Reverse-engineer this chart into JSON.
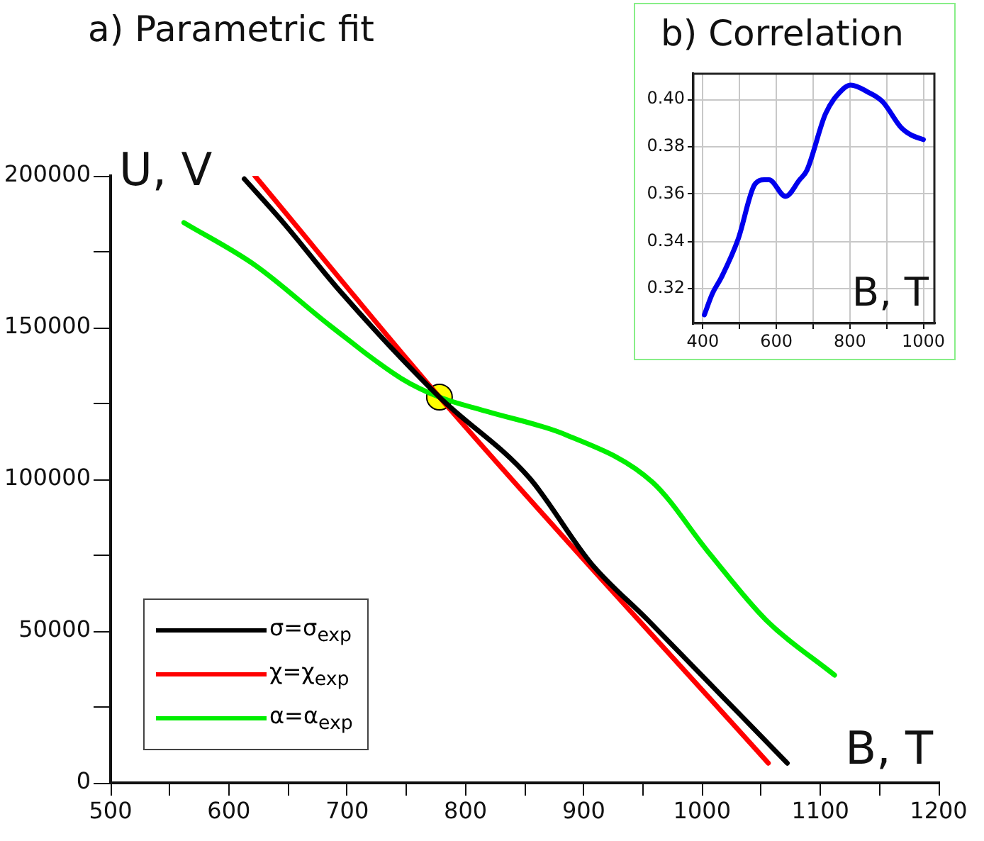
{
  "chart_data": [
    {
      "type": "line",
      "title": "a) Parametric fit",
      "xlabel": "B, T",
      "ylabel": "U, V",
      "xlim": [
        500,
        1200
      ],
      "ylim": [
        0,
        200000
      ],
      "xticks": [
        500,
        {
          "value": 550,
          "label": null
        },
        600,
        {
          "value": 650,
          "label": null
        },
        700,
        {
          "value": 750,
          "label": null
        },
        800,
        {
          "value": 850,
          "label": null
        },
        900,
        {
          "value": 950,
          "label": null
        },
        1000,
        {
          "value": 1050,
          "label": null
        },
        1100,
        {
          "value": 1150,
          "label": null
        },
        1200
      ],
      "yticks": [
        0,
        {
          "value": 25000,
          "label": null
        },
        50000,
        {
          "value": 75000,
          "label": null
        },
        100000,
        {
          "value": 125000,
          "label": null
        },
        150000,
        {
          "value": 175000,
          "label": null
        },
        200000
      ],
      "grid": false,
      "legend": "bottom left",
      "marker": "none",
      "series": [
        {
          "name": "σ=σ$_{exp}$",
          "color": "#000000",
          "x": [
            613,
            646,
            694,
            778,
            854,
            906,
            954,
            1072
          ],
          "values": [
            199000,
            184600,
            162000,
            127100,
            100500,
            72400,
            53700,
            6500
          ]
        },
        {
          "name": "χ=χ$_{exp}$",
          "color": "#ff0000",
          "x": [
            622,
            778,
            1056
          ],
          "values": [
            200000,
            127100,
            6500
          ]
        },
        {
          "name": "α=α$_{exp}$",
          "color": "#00ee00",
          "x": [
            562,
            622,
            686,
            746,
            778,
            818,
            886,
            958,
            1006,
            1054,
            1112
          ],
          "values": [
            184600,
            170600,
            150500,
            133200,
            127100,
            122400,
            114500,
            99100,
            75700,
            53700,
            35500
          ]
        },
        {
          "type": "scatter",
          "marker": "circle",
          "color": "#ffff00",
          "x": [
            778
          ],
          "values": [
            127100
          ]
        }
      ]
    },
    {
      "type": "line",
      "title": "b) Correlation",
      "xlabel": "B, T",
      "xlim": [
        374,
        1030
      ],
      "ylim": [
        0.3054,
        0.4108
      ],
      "xticks": [
        400,
        {
          "value": 500,
          "label": null
        },
        600,
        {
          "value": 700,
          "label": null
        },
        800,
        {
          "value": 900,
          "label": null
        },
        1000
      ],
      "yticks": [
        0.32,
        0.34,
        0.36,
        0.38,
        {
          "value": 0.4,
          "label": "0.40"
        }
      ],
      "grid": true,
      "marker": "none",
      "series": [
        {
          "color": "#0000ee",
          "x": [
            404,
            426,
            451,
            496,
            541,
            567,
            580,
            625,
            663,
            683,
            734,
            779,
            802,
            850,
            889,
            940,
            966,
            1000
          ],
          "values": [
            0.309,
            0.318,
            0.325,
            0.341,
            0.364,
            0.366,
            0.366,
            0.359,
            0.366,
            0.37,
            0.394,
            0.404,
            0.406,
            0.403,
            0.399,
            0.388,
            0.385,
            0.383
          ]
        }
      ]
    }
  ]
}
